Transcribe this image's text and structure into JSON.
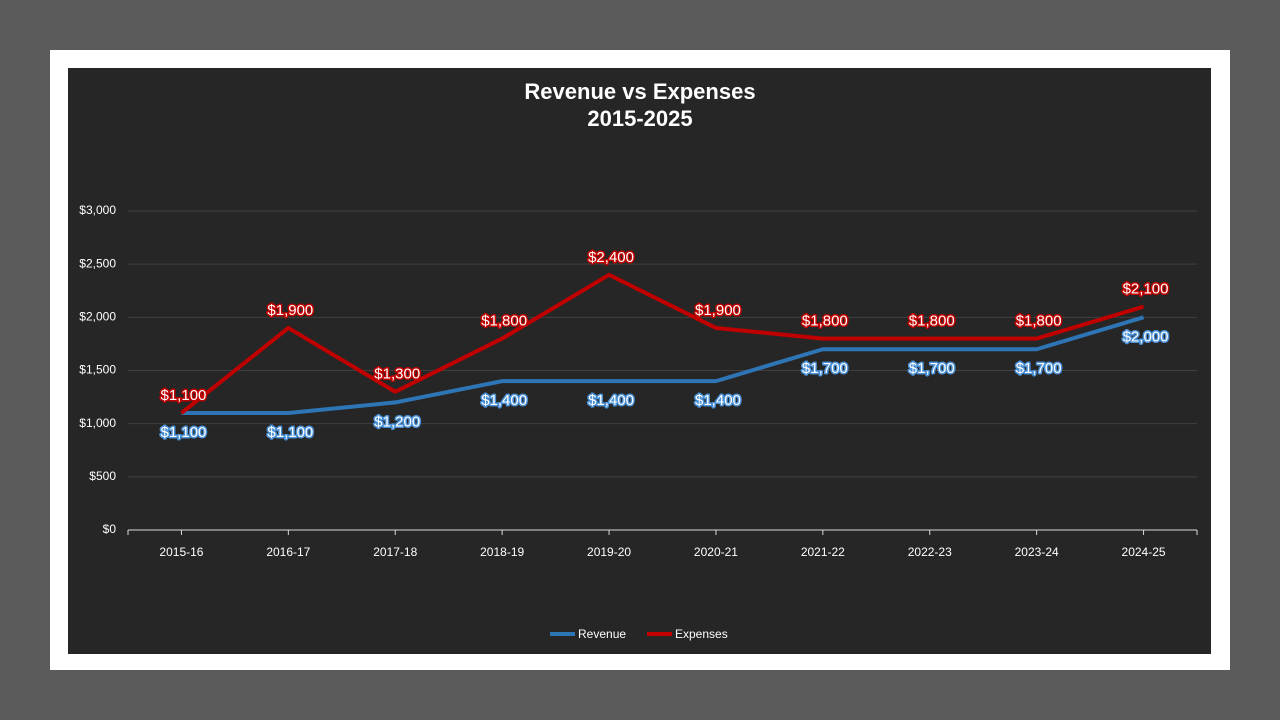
{
  "chart_data": {
    "type": "line",
    "title": "Revenue vs Expenses",
    "subtitle": "2015-2025",
    "categories": [
      "2015-16",
      "2016-17",
      "2017-18",
      "2018-19",
      "2019-20",
      "2020-21",
      "2021-22",
      "2022-23",
      "2023-24",
      "2024-25"
    ],
    "series": [
      {
        "name": "Revenue",
        "color": "#2e75b6",
        "values": [
          1100,
          1100,
          1200,
          1400,
          1400,
          1400,
          1700,
          1700,
          1700,
          2000
        ],
        "value_labels": [
          "$1,100",
          "$1,100",
          "$1,200",
          "$1,400",
          "$1,400",
          "$1,400",
          "$1,700",
          "$1,700",
          "$1,700",
          "$2,000"
        ]
      },
      {
        "name": "Expenses",
        "color": "#c00000",
        "values": [
          1100,
          1900,
          1300,
          1800,
          2400,
          1900,
          1800,
          1800,
          1800,
          2100
        ],
        "value_labels": [
          "$1,100",
          "$1,900",
          "$1,300",
          "$1,800",
          "$2,400",
          "$1,900",
          "$1,800",
          "$1,800",
          "$1,800",
          "$2,100"
        ]
      }
    ],
    "ylim": [
      0,
      3000
    ],
    "yticks": [
      {
        "value": 0,
        "label": "$0"
      },
      {
        "value": 500,
        "label": "$500"
      },
      {
        "value": 1000,
        "label": "$1,000"
      },
      {
        "value": 1500,
        "label": "$1,500"
      },
      {
        "value": 2000,
        "label": "$2,000"
      },
      {
        "value": 2500,
        "label": "$2,500"
      },
      {
        "value": 3000,
        "label": "$3,000"
      }
    ],
    "grid": true,
    "legend": "bottom"
  }
}
